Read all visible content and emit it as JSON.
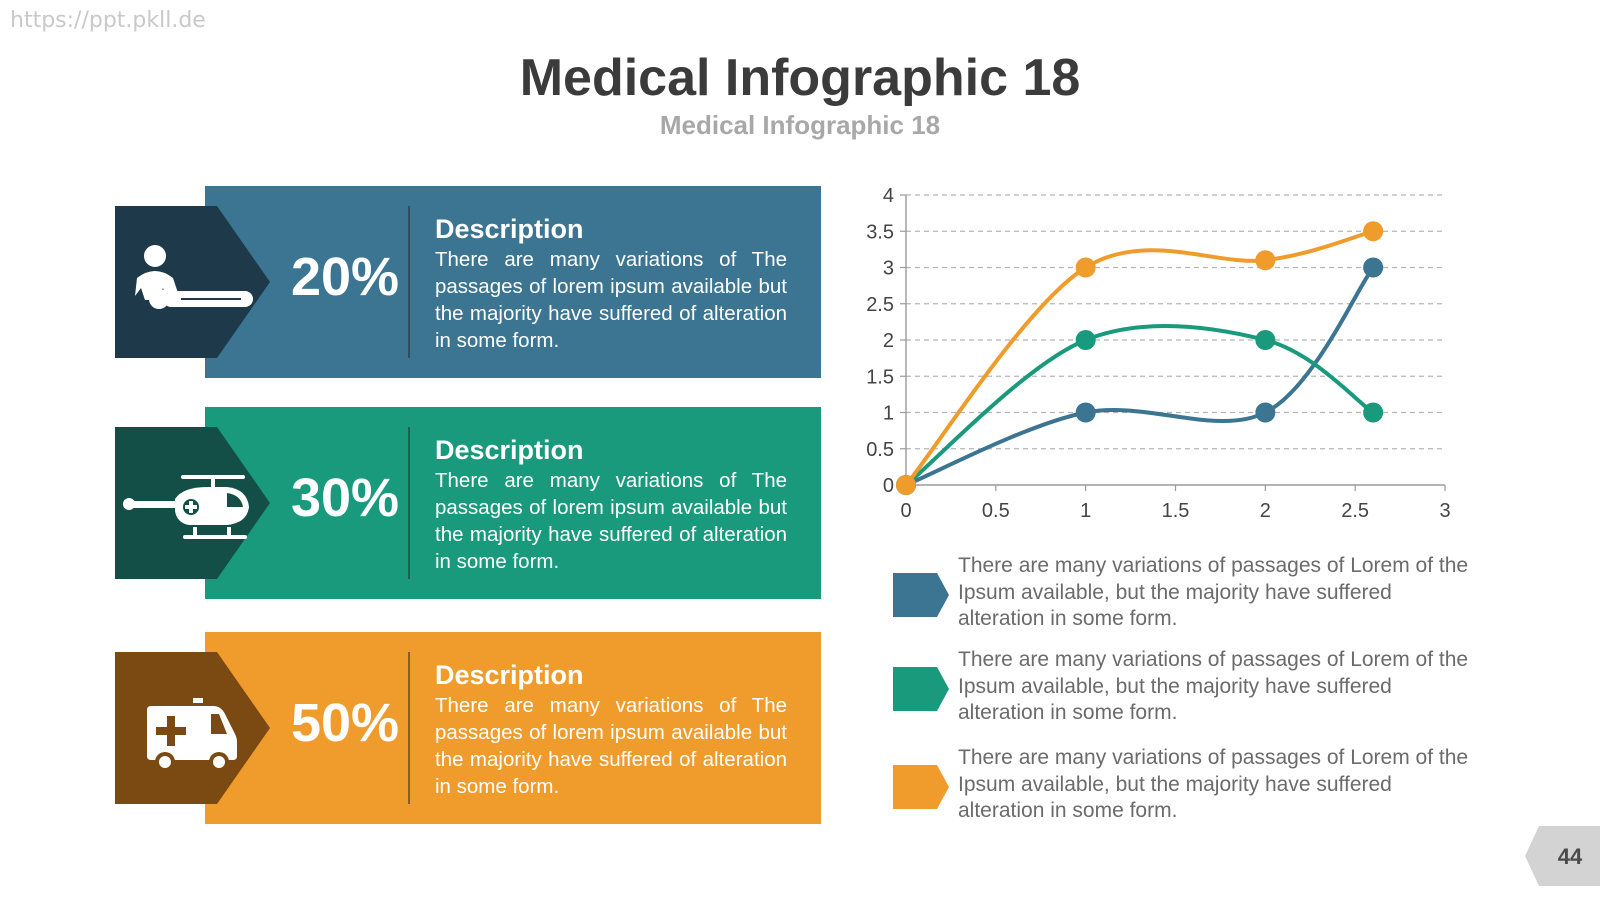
{
  "watermark": "https://ppt.pkll.de",
  "title": "Medical Infographic 18",
  "subtitle": "Medical Infographic 18",
  "cards": [
    {
      "percent": "20%",
      "desc_title": "Description",
      "desc_text": "There are many variations of  The passages of lorem ipsum available but the majority have suffered of alteration in some form.",
      "icon": "cpr-patient-icon",
      "band_color": "#3b7592",
      "arrow_color": "#1e3a4a"
    },
    {
      "percent": "30%",
      "desc_title": "Description",
      "desc_text": "There are many variations of  The passages of lorem ipsum available but the majority have suffered of alteration in some form.",
      "icon": "medical-helicopter-icon",
      "band_color": "#1a9a7c",
      "arrow_color": "#134f47"
    },
    {
      "percent": "50%",
      "desc_title": "Description",
      "desc_text": "There are many variations of  The passages of lorem ipsum available but the majority have suffered of alteration in some form.",
      "icon": "ambulance-icon",
      "band_color": "#f09c2c",
      "arrow_color": "#7b4a12"
    }
  ],
  "chart_data": {
    "type": "line",
    "smooth": true,
    "xlim": [
      0,
      3
    ],
    "ylim": [
      0,
      4
    ],
    "x_ticks": [
      "0",
      "0.5",
      "1",
      "1.5",
      "2",
      "2.5",
      "3"
    ],
    "y_ticks": [
      "0",
      "0.5",
      "1",
      "1.5",
      "2",
      "2.5",
      "3",
      "3.5",
      "4"
    ],
    "grid": "horizontal-dashed",
    "series": [
      {
        "color": "#3b7592",
        "points": [
          [
            0,
            0
          ],
          [
            1,
            1
          ],
          [
            2,
            1
          ],
          [
            2.6,
            3
          ]
        ]
      },
      {
        "color": "#1a9a7c",
        "points": [
          [
            0,
            0
          ],
          [
            1,
            2
          ],
          [
            2,
            2
          ],
          [
            2.6,
            1
          ]
        ]
      },
      {
        "color": "#f09c2c",
        "points": [
          [
            0,
            0
          ],
          [
            1,
            3
          ],
          [
            2,
            3.1
          ],
          [
            2.6,
            3.5
          ]
        ]
      }
    ]
  },
  "legend": [
    {
      "color": "#3b7592",
      "text": "There are many variations of passages of Lorem of the Ipsum available, but the majority have suffered alteration in some form."
    },
    {
      "color": "#1a9a7c",
      "text": "There are many variations of passages of Lorem  of the Ipsum available, but the majority have suffered alteration in some form."
    },
    {
      "color": "#f09c2c",
      "text": "There are many variations of passages of Lorem of the  Ipsum available, but the majority have suffered alteration in some form."
    }
  ],
  "page_number": "44"
}
